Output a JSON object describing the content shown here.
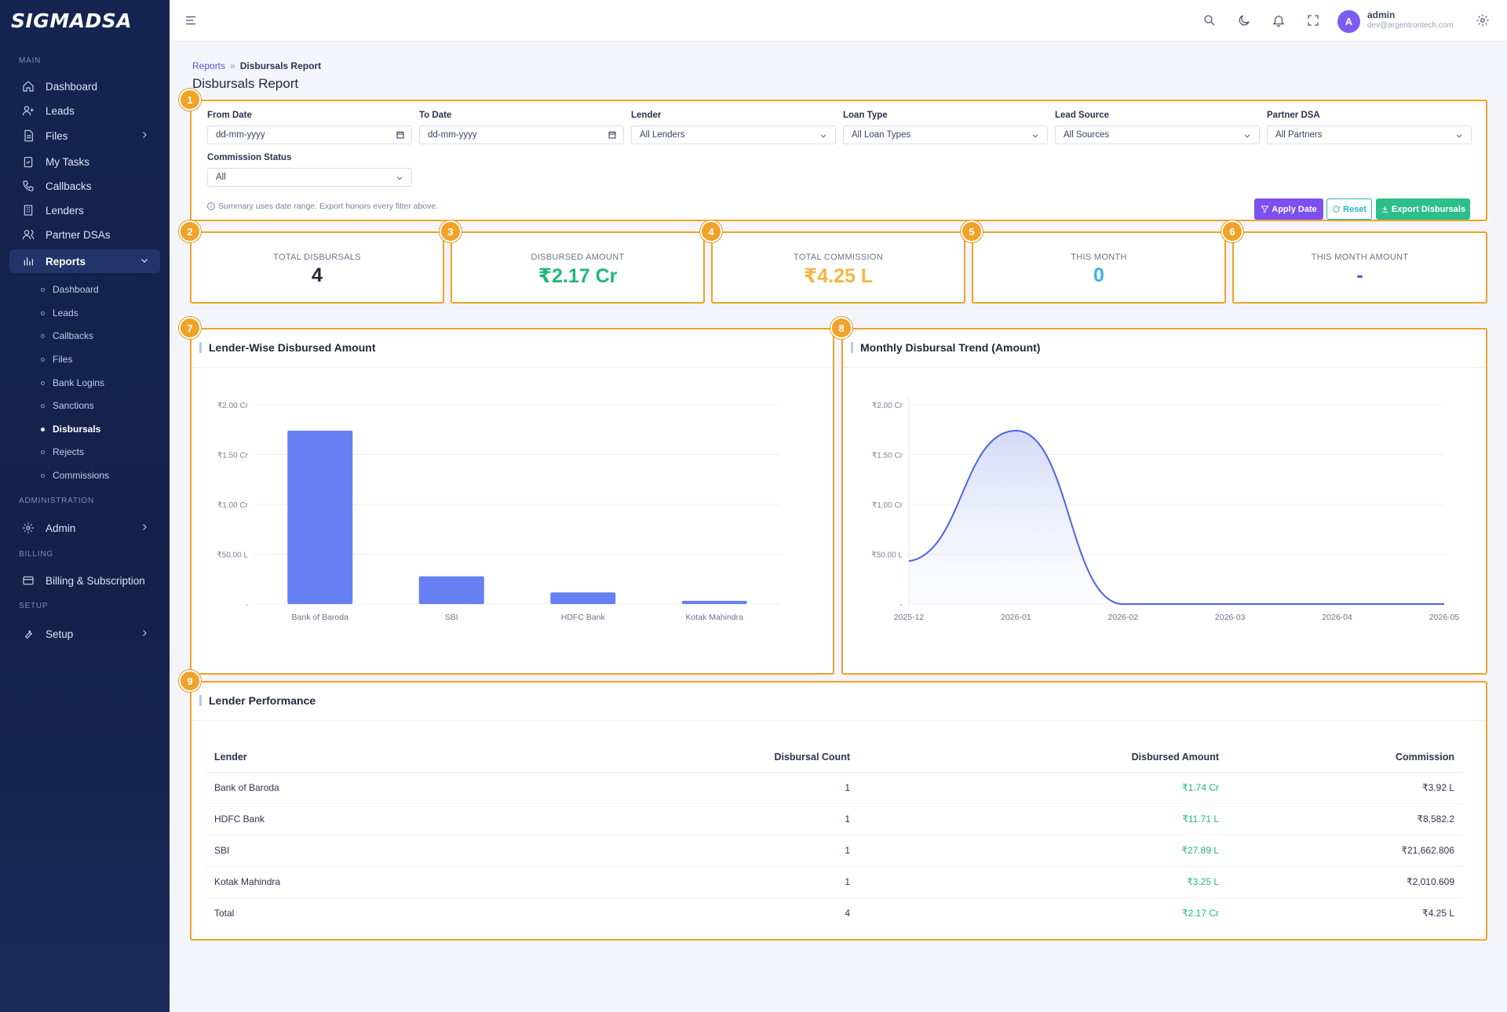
{
  "brand": "SIGMADSA",
  "sidebar": {
    "sections": {
      "main": "MAIN",
      "administration": "ADMINISTRATION",
      "billing": "BILLING",
      "setup": "SETUP"
    },
    "items": {
      "dashboard": "Dashboard",
      "leads": "Leads",
      "files": "Files",
      "my_tasks": "My Tasks",
      "callbacks": "Callbacks",
      "lenders": "Lenders",
      "partner_dsas": "Partner DSAs",
      "reports": "Reports",
      "admin": "Admin",
      "billing": "Billing & Subscription",
      "setup": "Setup"
    },
    "reports_sub": [
      "Dashboard",
      "Leads",
      "Callbacks",
      "Files",
      "Bank Logins",
      "Sanctions",
      "Disbursals",
      "Rejects",
      "Commissions"
    ]
  },
  "topbar": {
    "user_name": "admin",
    "user_email": "dev@argentrontech.com",
    "avatar_letter": "A"
  },
  "breadcrumb": {
    "parent": "Reports",
    "sep": "»",
    "current": "Disbursals Report"
  },
  "page_title": "Disbursals Report",
  "badges": [
    "1",
    "2",
    "3",
    "4",
    "5",
    "6",
    "7",
    "8",
    "9"
  ],
  "filters": {
    "from_date": {
      "label": "From Date",
      "value": "dd-mm-yyyy"
    },
    "to_date": {
      "label": "To Date",
      "value": "dd-mm-yyyy"
    },
    "lender": {
      "label": "Lender",
      "value": "All Lenders"
    },
    "loan_type": {
      "label": "Loan Type",
      "value": "All Loan Types"
    },
    "lead_source": {
      "label": "Lead Source",
      "value": "All Sources"
    },
    "partner_dsa": {
      "label": "Partner DSA",
      "value": "All Partners"
    },
    "commission_status": {
      "label": "Commission Status",
      "value": "All"
    },
    "note": "Summary uses date range. Export honors every filter above.",
    "apply_label": "Apply Date",
    "reset_label": "Reset",
    "export_label": "Export Disbursals"
  },
  "kpis": [
    {
      "label": "TOTAL DISBURSALS",
      "value": "4",
      "color": "#212b36"
    },
    {
      "label": "DISBURSED AMOUNT",
      "value": "₹2.17 Cr",
      "color": "#1fb978"
    },
    {
      "label": "TOTAL COMMISSION",
      "value": "₹4.25 L",
      "color": "#f4b545"
    },
    {
      "label": "THIS MONTH",
      "value": "0",
      "color": "#3db3e6"
    },
    {
      "label": "THIS MONTH AMOUNT",
      "value": "-",
      "color": "#5b50d6"
    }
  ],
  "chart_data": [
    {
      "type": "bar",
      "title": "Lender-Wise Disbursed Amount",
      "categories": [
        "Bank of Baroda",
        "SBI",
        "HDFC Bank",
        "Kotak Mahindra"
      ],
      "values": [
        17400000,
        2789000,
        1171000,
        325000
      ],
      "y_tick_labels": [
        "₹2.00 Cr",
        "₹1.50 Cr",
        "₹1.00 Cr",
        "₹50.00 L",
        "-"
      ],
      "y_ticks": [
        20000000,
        15000000,
        10000000,
        5000000,
        0
      ],
      "ylim": [
        0,
        20000000
      ],
      "grid": true,
      "color": "#6680f3"
    },
    {
      "type": "area",
      "title": "Monthly Disbursal Trend (Amount)",
      "x": [
        "2025-12",
        "2026-01",
        "2026-02",
        "2026-03",
        "2026-04",
        "2026-05"
      ],
      "values": [
        4300000,
        17400000,
        0,
        0,
        0,
        0
      ],
      "y_tick_labels": [
        "₹2.00 Cr",
        "₹1.50 Cr",
        "₹1.00 Cr",
        "₹50.00 L",
        "-"
      ],
      "y_ticks": [
        20000000,
        15000000,
        10000000,
        5000000,
        0
      ],
      "ylim": [
        0,
        20000000
      ],
      "grid": true,
      "color": "#4a63e6"
    }
  ],
  "table": {
    "title": "Lender Performance",
    "headers": [
      "Lender",
      "Disbursal Count",
      "Disbursed Amount",
      "Commission"
    ],
    "rows": [
      [
        "Bank of Baroda",
        "1",
        "₹1.74 Cr",
        "₹3.92 L"
      ],
      [
        "HDFC Bank",
        "1",
        "₹11.71 L",
        "₹8,582.2"
      ],
      [
        "SBI",
        "1",
        "₹27.89 L",
        "₹21,662.806"
      ],
      [
        "Kotak Mahindra",
        "1",
        "₹3.25 L",
        "₹2,010.609"
      ],
      [
        "Total",
        "4",
        "₹2.17 Cr",
        "₹4.25 L"
      ]
    ]
  }
}
